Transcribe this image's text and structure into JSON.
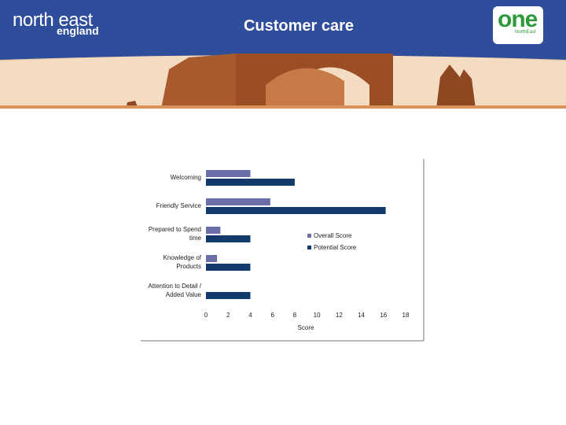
{
  "header": {
    "logo_left_line1": "north east",
    "logo_left_line2": "england",
    "title": "Customer care",
    "logo_right_main": "one",
    "logo_right_sub": "NorthEast"
  },
  "colors": {
    "header_bg": "#2e4d9a",
    "overall": "#6b6fa8",
    "potential": "#123a6b"
  },
  "chart_data": {
    "type": "bar",
    "orientation": "horizontal",
    "categories": [
      [
        "Welcoming"
      ],
      [
        "Friendly Service"
      ],
      [
        "Prepared to Spend",
        "time"
      ],
      [
        "Knowledge of",
        "Products"
      ],
      [
        "Attention to Detail /",
        "Added Value"
      ]
    ],
    "series": [
      {
        "name": "Overall Score",
        "values": [
          4,
          5.8,
          1.3,
          1,
          0
        ]
      },
      {
        "name": "Potential Score",
        "values": [
          8,
          16.2,
          4,
          4,
          4
        ]
      }
    ],
    "xlabel": "Score",
    "xlim": [
      0,
      18
    ],
    "xticks": [
      "0",
      "2",
      "4",
      "6",
      "8",
      "10",
      "12",
      "14",
      "16",
      "18"
    ],
    "legend": "right",
    "grid": false
  }
}
